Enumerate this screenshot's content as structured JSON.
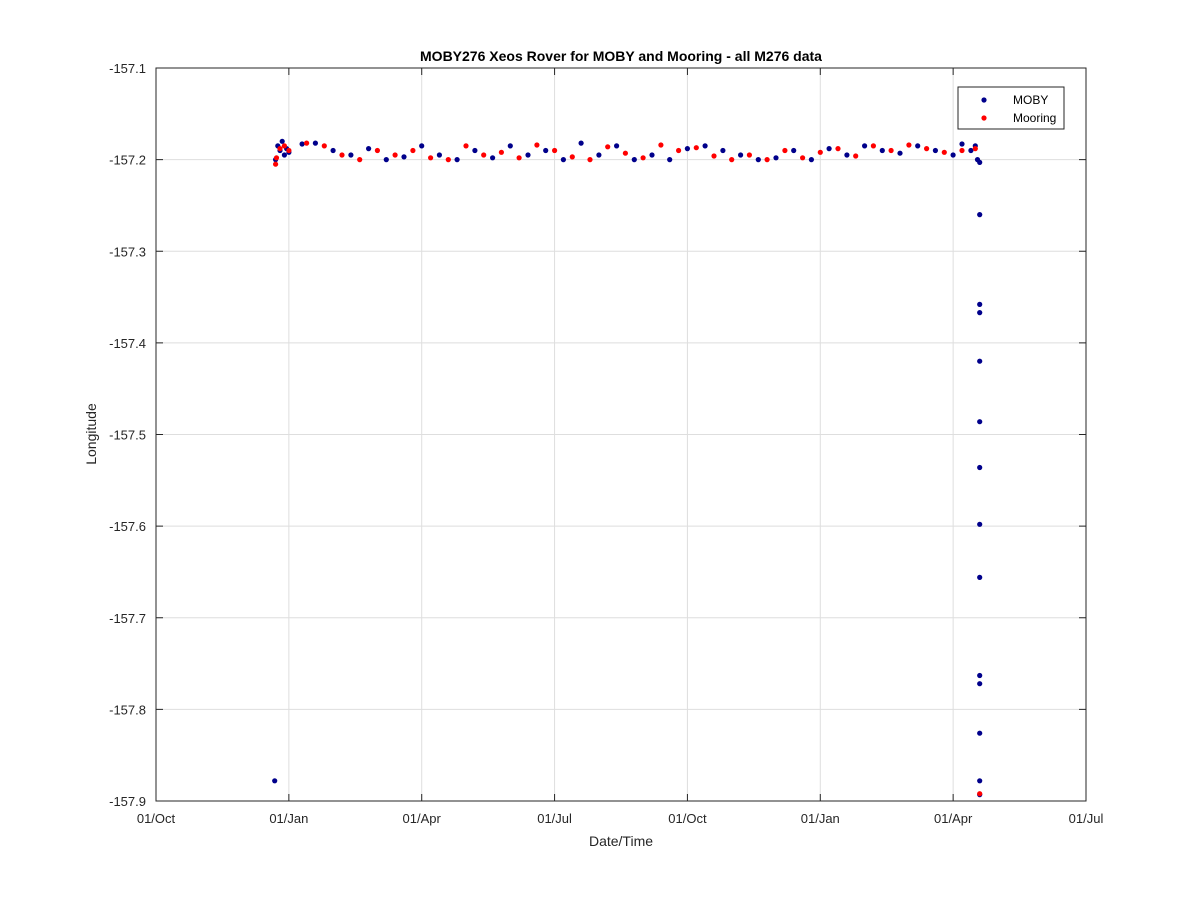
{
  "chart_data": {
    "type": "scatter",
    "title": "MOBY276 Xeos Rover for MOBY and Mooring - all M276 data",
    "xlabel": "Date/Time",
    "ylabel": "Longitude",
    "xlim": [
      "01/Oct",
      "01/Jul"
    ],
    "x_ticks": [
      "01/Oct",
      "01/Jan",
      "01/Apr",
      "01/Jul",
      "01/Oct",
      "01/Jan",
      "01/Apr",
      "01/Jul"
    ],
    "ylim": [
      -157.9,
      -157.1
    ],
    "y_ticks": [
      "-157.1",
      "-157.2",
      "-157.3",
      "-157.4",
      "-157.5",
      "-157.6",
      "-157.7",
      "-157.8",
      "-157.9"
    ],
    "grid": true,
    "legend_position": "top-right",
    "series": [
      {
        "name": "MOBY",
        "color": "#00008B",
        "x_month_index": [
          2.68,
          2.7,
          2.75,
          2.8,
          2.85,
          2.9,
          2.95,
          3.0,
          3.3,
          3.6,
          4.0,
          4.4,
          4.8,
          5.2,
          5.6,
          6.0,
          6.4,
          6.8,
          7.2,
          7.6,
          8.0,
          8.4,
          8.8,
          9.2,
          9.6,
          10.0,
          10.4,
          10.8,
          11.2,
          11.6,
          12.0,
          12.4,
          12.8,
          13.2,
          13.6,
          14.0,
          14.4,
          14.8,
          15.2,
          15.6,
          16.0,
          16.4,
          16.8,
          17.2,
          17.6,
          18.0,
          18.2,
          18.4,
          18.5,
          18.55,
          18.6,
          18.6,
          18.6,
          18.6,
          18.6,
          18.6,
          18.6,
          18.6,
          18.6,
          18.6,
          18.6,
          18.6,
          18.6,
          18.6
        ],
        "values": [
          -157.878,
          -157.2,
          -157.185,
          -157.19,
          -157.18,
          -157.195,
          -157.188,
          -157.192,
          -157.183,
          -157.182,
          -157.19,
          -157.195,
          -157.188,
          -157.2,
          -157.197,
          -157.185,
          -157.195,
          -157.2,
          -157.19,
          -157.198,
          -157.185,
          -157.195,
          -157.19,
          -157.2,
          -157.182,
          -157.195,
          -157.185,
          -157.2,
          -157.195,
          -157.2,
          -157.188,
          -157.185,
          -157.19,
          -157.195,
          -157.2,
          -157.198,
          -157.19,
          -157.2,
          -157.188,
          -157.195,
          -157.185,
          -157.19,
          -157.193,
          -157.185,
          -157.19,
          -157.195,
          -157.183,
          -157.19,
          -157.185,
          -157.2,
          -157.203,
          -157.26,
          -157.358,
          -157.367,
          -157.42,
          -157.486,
          -157.536,
          -157.598,
          -157.656,
          -157.763,
          -157.772,
          -157.826,
          -157.878,
          -157.893
        ]
      },
      {
        "name": "Mooring",
        "color": "#FF0000",
        "x_month_index": [
          2.7,
          2.72,
          2.8,
          2.9,
          3.0,
          3.4,
          3.8,
          4.2,
          4.6,
          5.0,
          5.4,
          5.8,
          6.2,
          6.6,
          7.0,
          7.4,
          7.8,
          8.2,
          8.6,
          9.0,
          9.4,
          9.8,
          10.2,
          10.6,
          11.0,
          11.4,
          11.8,
          12.2,
          12.6,
          13.0,
          13.4,
          13.8,
          14.2,
          14.6,
          15.0,
          15.4,
          15.8,
          16.2,
          16.6,
          17.0,
          17.4,
          17.8,
          18.2,
          18.5,
          18.6
        ],
        "values": [
          -157.205,
          -157.198,
          -157.188,
          -157.185,
          -157.19,
          -157.182,
          -157.185,
          -157.195,
          -157.2,
          -157.19,
          -157.195,
          -157.19,
          -157.198,
          -157.2,
          -157.185,
          -157.195,
          -157.192,
          -157.198,
          -157.184,
          -157.19,
          -157.197,
          -157.2,
          -157.186,
          -157.193,
          -157.198,
          -157.184,
          -157.19,
          -157.187,
          -157.196,
          -157.2,
          -157.195,
          -157.2,
          -157.19,
          -157.198,
          -157.192,
          -157.188,
          -157.196,
          -157.185,
          -157.19,
          -157.184,
          -157.188,
          -157.192,
          -157.19,
          -157.188,
          -157.892
        ]
      }
    ]
  }
}
